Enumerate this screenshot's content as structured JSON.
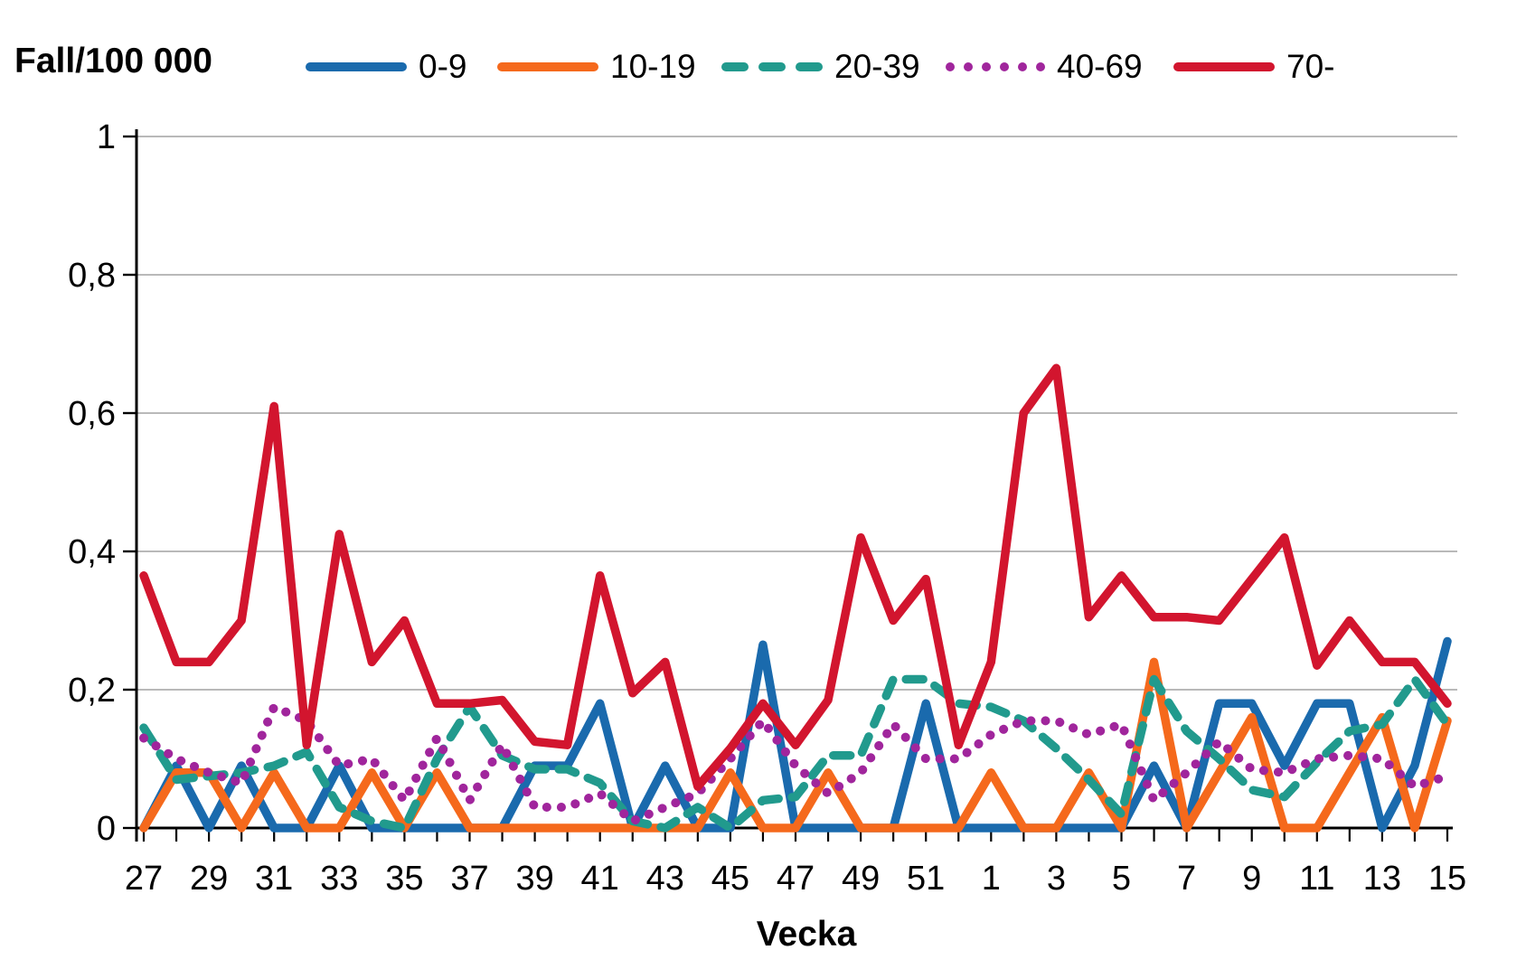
{
  "title": "Fall/100 000",
  "xlabel": "Vecka",
  "colors": {
    "series_0_9": "#1a6aad",
    "series_10_19": "#f5691c",
    "series_20_39": "#219a8d",
    "series_40_69": "#a0259c",
    "series_70_plus": "#d2152e",
    "gridline": "#a2a2a2",
    "axis": "#000000",
    "text": "#000000",
    "background": "#ffffff"
  },
  "chart_data": {
    "type": "line",
    "title": "Fall/100 000",
    "xlabel": "Vecka",
    "ylabel": "",
    "ylim": [
      0,
      1
    ],
    "ytick_step": 0.2,
    "grid": "horizontal",
    "legend_position": "top",
    "x_tick_labels": [
      "27",
      "28",
      "29",
      "30",
      "31",
      "32",
      "33",
      "34",
      "35",
      "36",
      "37",
      "38",
      "39",
      "40",
      "41",
      "42",
      "43",
      "44",
      "45",
      "46",
      "47",
      "48",
      "49",
      "50",
      "51",
      "52",
      "1",
      "2",
      "3",
      "4",
      "5",
      "6",
      "7",
      "8",
      "9",
      "10",
      "11",
      "12",
      "13",
      "14",
      "15"
    ],
    "x_labeled_every": 2,
    "y_tick_labels": [
      "0",
      "0,2",
      "0,4",
      "0,6",
      "0,8",
      "1"
    ],
    "series": [
      {
        "name": "0-9",
        "color": "#1a6aad",
        "style": "solid",
        "values": [
          0,
          0.09,
          0,
          0.09,
          0,
          0,
          0.09,
          0,
          0,
          0,
          0,
          0,
          0.09,
          0.09,
          0.18,
          0,
          0.09,
          0,
          0,
          0.265,
          0,
          0,
          0,
          0,
          0.18,
          0,
          0,
          0,
          0,
          0,
          0,
          0.09,
          0,
          0.18,
          0.18,
          0.09,
          0.18,
          0.18,
          0,
          0.09,
          0.27
        ]
      },
      {
        "name": "10-19",
        "color": "#f5691c",
        "style": "solid",
        "values": [
          0,
          0.08,
          0.08,
          0,
          0.08,
          0,
          0,
          0.08,
          0,
          0.08,
          0,
          0,
          0,
          0,
          0,
          0,
          0,
          0,
          0.08,
          0,
          0,
          0.08,
          0,
          0,
          0,
          0,
          0.08,
          0,
          0,
          0.08,
          0,
          0.24,
          0,
          0.08,
          0.16,
          0,
          0,
          0.08,
          0.16,
          0,
          0.155
        ]
      },
      {
        "name": "20-39",
        "color": "#219a8d",
        "style": "dashed",
        "values": [
          0.145,
          0.07,
          0.075,
          0.08,
          0.09,
          0.11,
          0.03,
          0.01,
          0,
          0.1,
          0.175,
          0.105,
          0.085,
          0.085,
          0.065,
          0.01,
          0,
          0.03,
          0,
          0.04,
          0.045,
          0.105,
          0.105,
          0.215,
          0.215,
          0.18,
          0.175,
          0.155,
          0.115,
          0.07,
          0.02,
          0.215,
          0.14,
          0.1,
          0.055,
          0.045,
          0.095,
          0.14,
          0.15,
          0.215,
          0.15
        ]
      },
      {
        "name": "40-69",
        "color": "#a0259c",
        "style": "dotted",
        "values": [
          0.13,
          0.1,
          0.08,
          0.065,
          0.175,
          0.155,
          0.09,
          0.1,
          0.04,
          0.13,
          0.04,
          0.12,
          0.03,
          0.03,
          0.05,
          0.01,
          0.03,
          0.05,
          0.1,
          0.155,
          0.09,
          0.05,
          0.08,
          0.15,
          0.1,
          0.1,
          0.135,
          0.155,
          0.155,
          0.135,
          0.15,
          0.04,
          0.08,
          0.125,
          0.085,
          0.08,
          0.1,
          0.105,
          0.1,
          0.06,
          0.075
        ]
      },
      {
        "name": "70-",
        "color": "#d2152e",
        "style": "solid",
        "values": [
          0.365,
          0.24,
          0.24,
          0.3,
          0.61,
          0.12,
          0.425,
          0.24,
          0.3,
          0.18,
          0.18,
          0.185,
          0.125,
          0.12,
          0.365,
          0.195,
          0.24,
          0.06,
          0.115,
          0.18,
          0.12,
          0.185,
          0.42,
          0.3,
          0.36,
          0.12,
          0.24,
          0.6,
          0.665,
          0.305,
          0.365,
          0.305,
          0.305,
          0.3,
          0.36,
          0.42,
          0.235,
          0.3,
          0.24,
          0.24,
          0.18
        ]
      }
    ]
  }
}
